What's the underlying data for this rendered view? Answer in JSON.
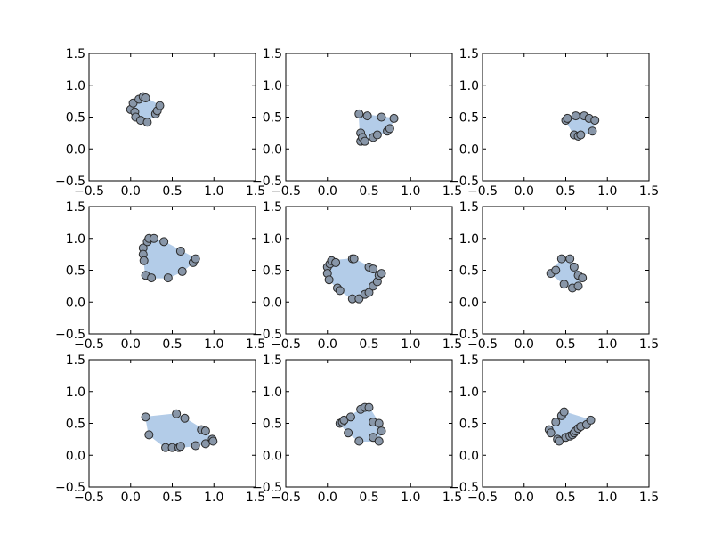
{
  "chart_data": {
    "type": "scatter",
    "grid": false,
    "xlim": [
      -0.5,
      1.5
    ],
    "ylim": [
      -0.5,
      1.5
    ],
    "xticks": [
      "−0.5",
      "0.0",
      "0.5",
      "1.0",
      "1.5"
    ],
    "yticks": [
      "−0.5",
      "0.0",
      "0.5",
      "1.0",
      "1.5"
    ],
    "colors": {
      "hull": "#b3cce8",
      "point": "#8896a8",
      "point_edge": "#2a2a2a"
    },
    "panels": [
      {
        "points": [
          [
            0.0,
            0.62
          ],
          [
            0.03,
            0.72
          ],
          [
            0.05,
            0.58
          ],
          [
            0.06,
            0.5
          ],
          [
            0.1,
            0.78
          ],
          [
            0.12,
            0.45
          ],
          [
            0.15,
            0.82
          ],
          [
            0.18,
            0.8
          ],
          [
            0.2,
            0.42
          ],
          [
            0.3,
            0.55
          ],
          [
            0.32,
            0.6
          ],
          [
            0.35,
            0.68
          ]
        ]
      },
      {
        "points": [
          [
            0.38,
            0.55
          ],
          [
            0.4,
            0.25
          ],
          [
            0.4,
            0.12
          ],
          [
            0.42,
            0.18
          ],
          [
            0.45,
            0.12
          ],
          [
            0.48,
            0.52
          ],
          [
            0.55,
            0.18
          ],
          [
            0.6,
            0.22
          ],
          [
            0.65,
            0.5
          ],
          [
            0.72,
            0.28
          ],
          [
            0.75,
            0.32
          ],
          [
            0.8,
            0.48
          ]
        ]
      },
      {
        "points": [
          [
            0.5,
            0.45
          ],
          [
            0.52,
            0.48
          ],
          [
            0.6,
            0.22
          ],
          [
            0.62,
            0.52
          ],
          [
            0.65,
            0.2
          ],
          [
            0.68,
            0.22
          ],
          [
            0.72,
            0.52
          ],
          [
            0.78,
            0.48
          ],
          [
            0.82,
            0.28
          ],
          [
            0.85,
            0.45
          ]
        ]
      },
      {
        "points": [
          [
            0.15,
            0.85
          ],
          [
            0.15,
            0.75
          ],
          [
            0.16,
            0.65
          ],
          [
            0.18,
            0.42
          ],
          [
            0.2,
            0.95
          ],
          [
            0.22,
            1.0
          ],
          [
            0.25,
            0.38
          ],
          [
            0.28,
            1.0
          ],
          [
            0.4,
            0.95
          ],
          [
            0.45,
            0.38
          ],
          [
            0.6,
            0.8
          ],
          [
            0.62,
            0.48
          ],
          [
            0.75,
            0.62
          ],
          [
            0.78,
            0.68
          ]
        ]
      },
      {
        "points": [
          [
            0.0,
            0.55
          ],
          [
            0.0,
            0.45
          ],
          [
            0.02,
            0.35
          ],
          [
            0.03,
            0.6
          ],
          [
            0.05,
            0.65
          ],
          [
            0.1,
            0.62
          ],
          [
            0.12,
            0.22
          ],
          [
            0.15,
            0.18
          ],
          [
            0.3,
            0.68
          ],
          [
            0.32,
            0.68
          ],
          [
            0.3,
            0.05
          ],
          [
            0.38,
            0.05
          ],
          [
            0.45,
            0.12
          ],
          [
            0.5,
            0.15
          ],
          [
            0.55,
            0.25
          ],
          [
            0.6,
            0.32
          ],
          [
            0.62,
            0.42
          ],
          [
            0.65,
            0.45
          ],
          [
            0.5,
            0.55
          ],
          [
            0.55,
            0.52
          ]
        ]
      },
      {
        "points": [
          [
            0.32,
            0.45
          ],
          [
            0.38,
            0.5
          ],
          [
            0.45,
            0.68
          ],
          [
            0.48,
            0.28
          ],
          [
            0.55,
            0.68
          ],
          [
            0.6,
            0.55
          ],
          [
            0.58,
            0.22
          ],
          [
            0.65,
            0.25
          ],
          [
            0.65,
            0.42
          ],
          [
            0.7,
            0.38
          ]
        ]
      },
      {
        "points": [
          [
            0.18,
            0.6
          ],
          [
            0.22,
            0.32
          ],
          [
            0.42,
            0.12
          ],
          [
            0.5,
            0.12
          ],
          [
            0.55,
            0.65
          ],
          [
            0.58,
            0.12
          ],
          [
            0.6,
            0.14
          ],
          [
            0.65,
            0.58
          ],
          [
            0.78,
            0.15
          ],
          [
            0.85,
            0.4
          ],
          [
            0.9,
            0.38
          ],
          [
            0.9,
            0.18
          ],
          [
            0.98,
            0.25
          ],
          [
            0.99,
            0.22
          ]
        ]
      },
      {
        "points": [
          [
            0.15,
            0.5
          ],
          [
            0.18,
            0.52
          ],
          [
            0.2,
            0.55
          ],
          [
            0.25,
            0.35
          ],
          [
            0.28,
            0.6
          ],
          [
            0.38,
            0.22
          ],
          [
            0.4,
            0.72
          ],
          [
            0.45,
            0.75
          ],
          [
            0.5,
            0.75
          ],
          [
            0.55,
            0.28
          ],
          [
            0.55,
            0.52
          ],
          [
            0.62,
            0.22
          ],
          [
            0.62,
            0.5
          ],
          [
            0.65,
            0.38
          ]
        ]
      },
      {
        "points": [
          [
            0.3,
            0.4
          ],
          [
            0.32,
            0.35
          ],
          [
            0.38,
            0.52
          ],
          [
            0.4,
            0.25
          ],
          [
            0.42,
            0.22
          ],
          [
            0.45,
            0.62
          ],
          [
            0.48,
            0.68
          ],
          [
            0.5,
            0.28
          ],
          [
            0.55,
            0.3
          ],
          [
            0.58,
            0.32
          ],
          [
            0.6,
            0.35
          ],
          [
            0.62,
            0.38
          ],
          [
            0.65,
            0.42
          ],
          [
            0.68,
            0.45
          ],
          [
            0.75,
            0.48
          ],
          [
            0.8,
            0.55
          ]
        ]
      }
    ]
  }
}
